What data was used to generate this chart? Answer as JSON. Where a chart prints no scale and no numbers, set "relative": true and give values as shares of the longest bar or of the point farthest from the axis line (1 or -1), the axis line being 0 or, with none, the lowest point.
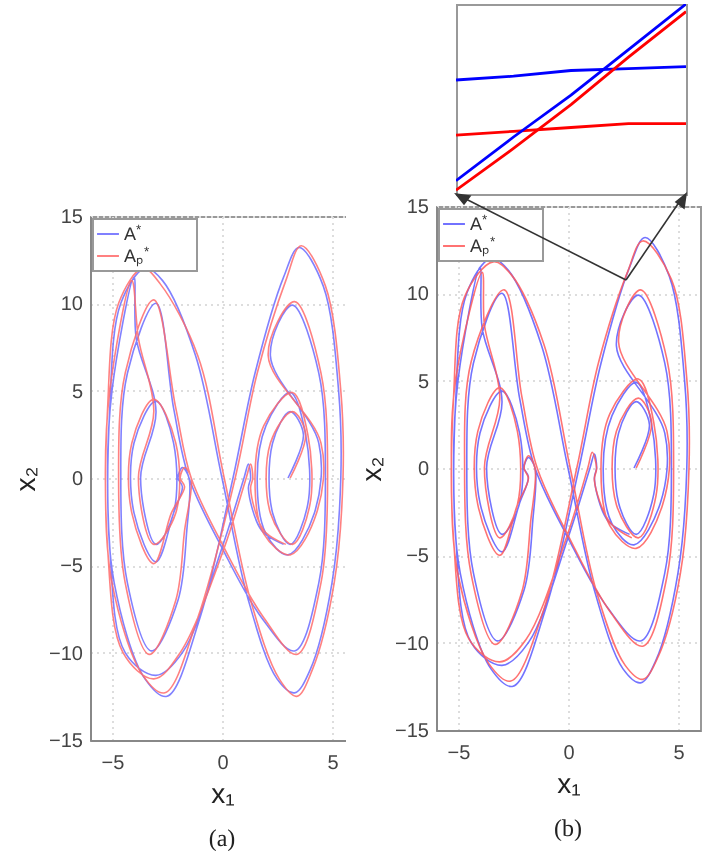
{
  "chart_data": [
    {
      "type": "line",
      "xlabel": "x₁",
      "ylabel": "x₂",
      "annotations": [
        "(a)"
      ],
      "xlim": [
        -6,
        6
      ],
      "xticks": [
        -5,
        0,
        5
      ],
      "ylim": [
        -15,
        15
      ],
      "yticks": [
        -15,
        -10,
        -5,
        0,
        5,
        10,
        15
      ],
      "grid": true,
      "legend": "top left",
      "series": [
        {
          "name": "A$^{*}$",
          "color": "#6b6bff",
          "x": [
            3.0,
            3.7,
            3.1,
            2.3,
            2.3,
            3.1,
            3.9,
            3.8,
            3.1,
            2.0,
            1.6,
            2.0,
            3.0,
            4.2,
            4.4,
            2.2,
            3.2,
            4.4,
            4.7,
            4.4,
            3.3,
            1.8,
            0.0,
            -1.5,
            -2.2,
            -3.0,
            -4.3,
            -4.6,
            -4.3,
            -3.2,
            -2.0,
            -1.6,
            -1.5,
            -1.8,
            -2.0,
            -1.8,
            -2.2,
            -3.0,
            -4.0,
            -4.0,
            -3.0,
            -2.2,
            -2.2,
            -3.0,
            -3.7,
            -3.0,
            -3.9,
            -4.0,
            -5.0,
            -5.2,
            -4.9,
            -3.5,
            -2.5,
            -1.0,
            0.5,
            1.5,
            2.8,
            3.5,
            4.6,
            5.3,
            5.4,
            5.0,
            4.0,
            3.3,
            2.5,
            1.2,
            0.0,
            -1.2,
            -2.7,
            -3.5,
            -4.6,
            -5.1,
            -5.1,
            -4.4,
            -3.0,
            -1.8,
            0.0,
            1.0,
            1.2,
            1.3,
            1.2,
            1.8,
            2.8
          ],
          "values": [
            0.0,
            2.5,
            3.8,
            2.0,
            -2.0,
            -3.8,
            -1.5,
            2.5,
            4.9,
            3.0,
            0.0,
            -3.2,
            -4.4,
            -2.0,
            2.0,
            7.0,
            9.9,
            6.0,
            0.0,
            -6.0,
            -9.9,
            -8.0,
            -4.0,
            0.0,
            4.0,
            10.0,
            6.0,
            0.0,
            -6.0,
            -9.9,
            -7.0,
            -3.0,
            0.0,
            0.6,
            0.0,
            -0.5,
            -2.0,
            -4.8,
            -2.0,
            2.0,
            4.4,
            2.0,
            -2.0,
            -3.8,
            0.0,
            3.8,
            8.0,
            11.5,
            5.0,
            0.0,
            -6.0,
            -11.5,
            -12.5,
            -8.0,
            0.0,
            6.0,
            11.5,
            13.2,
            11.0,
            5.0,
            0.0,
            -6.0,
            -11.0,
            -12.3,
            -11.5,
            -7.0,
            0.0,
            7.0,
            11.3,
            12.0,
            10.0,
            4.0,
            -4.0,
            -10.0,
            -11.3,
            -10.0,
            -4.0,
            0.0,
            0.8,
            0.0,
            -0.6,
            -3.0,
            -3.8
          ]
        },
        {
          "name": "Aₚ$^{*}$",
          "color": "#ff6b6b",
          "x": [
            3.1,
            3.8,
            3.2,
            2.2,
            2.2,
            3.2,
            4.0,
            3.9,
            3.2,
            1.9,
            1.5,
            1.9,
            3.1,
            4.3,
            4.5,
            2.1,
            3.3,
            4.5,
            4.8,
            4.5,
            3.4,
            1.9,
            0.1,
            -1.4,
            -2.1,
            -3.1,
            -4.4,
            -4.7,
            -4.4,
            -3.3,
            -2.1,
            -1.7,
            -1.4,
            -1.7,
            -1.9,
            -1.7,
            -2.3,
            -3.1,
            -4.1,
            -4.1,
            -3.1,
            -2.1,
            -2.1,
            -3.1,
            -3.8,
            -3.1,
            -3.8,
            -4.1,
            -5.1,
            -5.3,
            -5.0,
            -3.6,
            -2.6,
            -1.1,
            0.6,
            1.6,
            2.9,
            3.6,
            4.7,
            5.4,
            5.5,
            5.1,
            4.1,
            3.4,
            2.6,
            1.3,
            0.1,
            -1.1,
            -2.8,
            -3.6,
            -4.7,
            -5.2,
            -5.2,
            -4.5,
            -3.1,
            -1.9,
            0.1,
            1.1,
            1.3,
            1.4,
            1.3,
            1.9,
            2.9
          ],
          "values": [
            0.0,
            2.5,
            3.8,
            2.0,
            -2.0,
            -3.8,
            -1.5,
            2.5,
            4.9,
            3.0,
            0.0,
            -3.2,
            -4.4,
            -2.0,
            2.0,
            7.0,
            10.1,
            6.0,
            0.0,
            -6.0,
            -10.1,
            -8.0,
            -4.0,
            0.0,
            4.0,
            10.2,
            6.0,
            0.0,
            -6.0,
            -10.1,
            -7.0,
            -3.0,
            0.0,
            0.6,
            0.0,
            -0.5,
            -2.0,
            -4.9,
            -2.0,
            2.0,
            4.5,
            2.0,
            -2.0,
            -3.8,
            0.0,
            3.8,
            8.0,
            11.3,
            5.0,
            0.0,
            -6.0,
            -11.3,
            -12.3,
            -8.0,
            0.0,
            6.0,
            11.3,
            13.3,
            11.0,
            5.0,
            0.0,
            -6.0,
            -11.0,
            -12.5,
            -11.5,
            -7.0,
            0.0,
            7.0,
            11.1,
            12.0,
            10.0,
            4.0,
            -4.0,
            -10.0,
            -11.5,
            -10.0,
            -4.0,
            0.0,
            0.8,
            0.0,
            -0.6,
            -3.0,
            -3.8
          ]
        }
      ]
    },
    {
      "type": "line",
      "xlabel": "x₁",
      "ylabel": "x₂",
      "annotations": [
        "(b)"
      ],
      "xlim": [
        -6,
        6
      ],
      "xticks": [
        -5,
        0,
        5
      ],
      "ylim": [
        -15,
        15
      ],
      "yticks": [
        -15,
        -10,
        -5,
        0,
        5,
        10,
        15
      ],
      "grid": true,
      "legend": "top left",
      "series": [
        {
          "name": "A$^{*}$",
          "color": "#5a5aff",
          "x": [
            3.0,
            3.7,
            3.1,
            2.3,
            2.3,
            3.1,
            3.9,
            3.8,
            3.1,
            2.0,
            1.6,
            2.0,
            3.0,
            4.2,
            4.4,
            2.2,
            3.2,
            4.4,
            4.7,
            4.4,
            3.3,
            1.8,
            0.0,
            -1.5,
            -2.2,
            -3.0,
            -4.3,
            -4.6,
            -4.3,
            -3.2,
            -2.0,
            -1.6,
            -1.5,
            -1.8,
            -2.0,
            -1.8,
            -2.2,
            -3.0,
            -4.0,
            -4.0,
            -3.0,
            -2.2,
            -2.2,
            -3.0,
            -3.7,
            -3.0,
            -3.9,
            -4.0,
            -5.0,
            -5.2,
            -4.9,
            -3.5,
            -2.5,
            -1.0,
            0.5,
            1.5,
            2.8,
            3.5,
            4.6,
            5.3,
            5.4,
            5.0,
            4.0,
            3.3,
            2.5,
            1.2,
            0.0,
            -1.2,
            -2.7,
            -3.5,
            -4.6,
            -5.1,
            -5.1,
            -4.4,
            -3.0,
            -1.8,
            0.0,
            1.0,
            1.2,
            1.3,
            1.2,
            1.8,
            2.8
          ],
          "values": [
            0.0,
            2.5,
            3.8,
            2.0,
            -2.0,
            -3.8,
            -1.5,
            2.5,
            4.9,
            3.0,
            0.0,
            -3.2,
            -4.4,
            -2.0,
            2.0,
            7.0,
            9.9,
            6.0,
            0.0,
            -6.0,
            -9.9,
            -8.0,
            -4.0,
            0.0,
            4.0,
            10.0,
            6.0,
            0.0,
            -6.0,
            -9.9,
            -7.0,
            -3.0,
            0.0,
            0.6,
            0.0,
            -0.5,
            -2.0,
            -4.8,
            -2.0,
            2.0,
            4.4,
            2.0,
            -2.0,
            -3.8,
            0.0,
            3.8,
            8.0,
            11.5,
            5.0,
            0.0,
            -6.0,
            -11.5,
            -12.5,
            -8.0,
            0.0,
            6.0,
            11.5,
            13.2,
            11.0,
            5.0,
            0.0,
            -6.0,
            -11.0,
            -12.3,
            -11.5,
            -7.0,
            0.0,
            7.0,
            11.3,
            12.0,
            10.0,
            4.0,
            -4.0,
            -10.0,
            -11.3,
            -10.0,
            -4.0,
            0.0,
            0.8,
            0.0,
            -0.6,
            -3.0,
            -3.8
          ]
        },
        {
          "name": "Aₚ$^{*}$",
          "color": "#ff5a5a",
          "x": [
            3.1,
            3.8,
            3.2,
            2.2,
            2.2,
            3.2,
            4.0,
            3.9,
            3.2,
            1.9,
            1.5,
            1.9,
            3.1,
            4.3,
            4.5,
            2.3,
            3.3,
            4.5,
            4.8,
            4.5,
            3.4,
            1.9,
            0.1,
            -1.4,
            -2.1,
            -2.9,
            -4.4,
            -4.7,
            -4.4,
            -3.3,
            -2.1,
            -1.7,
            -1.5,
            -1.8,
            -2.0,
            -1.8,
            -2.3,
            -3.1,
            -4.1,
            -4.1,
            -3.1,
            -2.3,
            -2.3,
            -3.1,
            -3.8,
            -3.1,
            -3.8,
            -3.9,
            -5.1,
            -5.3,
            -5.0,
            -3.6,
            -2.6,
            -1.1,
            0.4,
            1.4,
            2.7,
            3.4,
            4.7,
            5.4,
            5.5,
            5.1,
            4.1,
            3.4,
            2.6,
            1.3,
            0.1,
            -1.1,
            -2.6,
            -3.4,
            -4.7,
            -5.2,
            -5.2,
            -4.5,
            -3.1,
            -1.9,
            -0.1,
            0.9,
            1.1,
            1.3,
            1.2,
            1.9,
            2.9
          ],
          "values": [
            0.0,
            2.6,
            4.0,
            2.1,
            -2.1,
            -4.0,
            -1.6,
            2.6,
            5.1,
            3.1,
            0.0,
            -3.3,
            -4.6,
            -2.1,
            2.1,
            7.2,
            10.2,
            6.2,
            0.0,
            -6.2,
            -10.2,
            -8.2,
            -4.1,
            0.0,
            4.1,
            10.2,
            6.1,
            0.0,
            -6.1,
            -10.1,
            -7.1,
            -3.1,
            0.0,
            0.7,
            0.0,
            -0.6,
            -2.1,
            -5.0,
            -2.1,
            2.1,
            4.6,
            2.1,
            -2.1,
            -4.0,
            0.0,
            4.0,
            8.2,
            11.2,
            5.1,
            0.0,
            -6.1,
            -11.2,
            -12.2,
            -8.1,
            0.0,
            6.1,
            11.2,
            13.0,
            10.8,
            5.1,
            0.0,
            -6.1,
            -10.8,
            -12.1,
            -11.3,
            -7.1,
            0.0,
            7.1,
            11.1,
            11.8,
            9.8,
            4.1,
            -4.1,
            -9.8,
            -11.1,
            -9.8,
            -4.1,
            0.0,
            0.9,
            0.0,
            -0.7,
            -3.1,
            -4.0
          ]
        }
      ]
    },
    {
      "type": "line",
      "relative": true,
      "categories": [
        null,
        null,
        null,
        null,
        null
      ],
      "series": [
        {
          "color": "#0000ff",
          "values": [
            0.6,
            0.62,
            0.65,
            0.66,
            0.67
          ]
        },
        {
          "color": "#ff0000",
          "values": [
            0.31,
            0.33,
            0.35,
            0.37,
            0.37
          ]
        },
        {
          "color": "#0000ff",
          "values": [
            0.07,
            0.3,
            0.52,
            0.76,
            1.0
          ]
        },
        {
          "color": "#ff0000",
          "values": [
            0.02,
            0.24,
            0.47,
            0.72,
            0.96
          ]
        }
      ]
    }
  ]
}
